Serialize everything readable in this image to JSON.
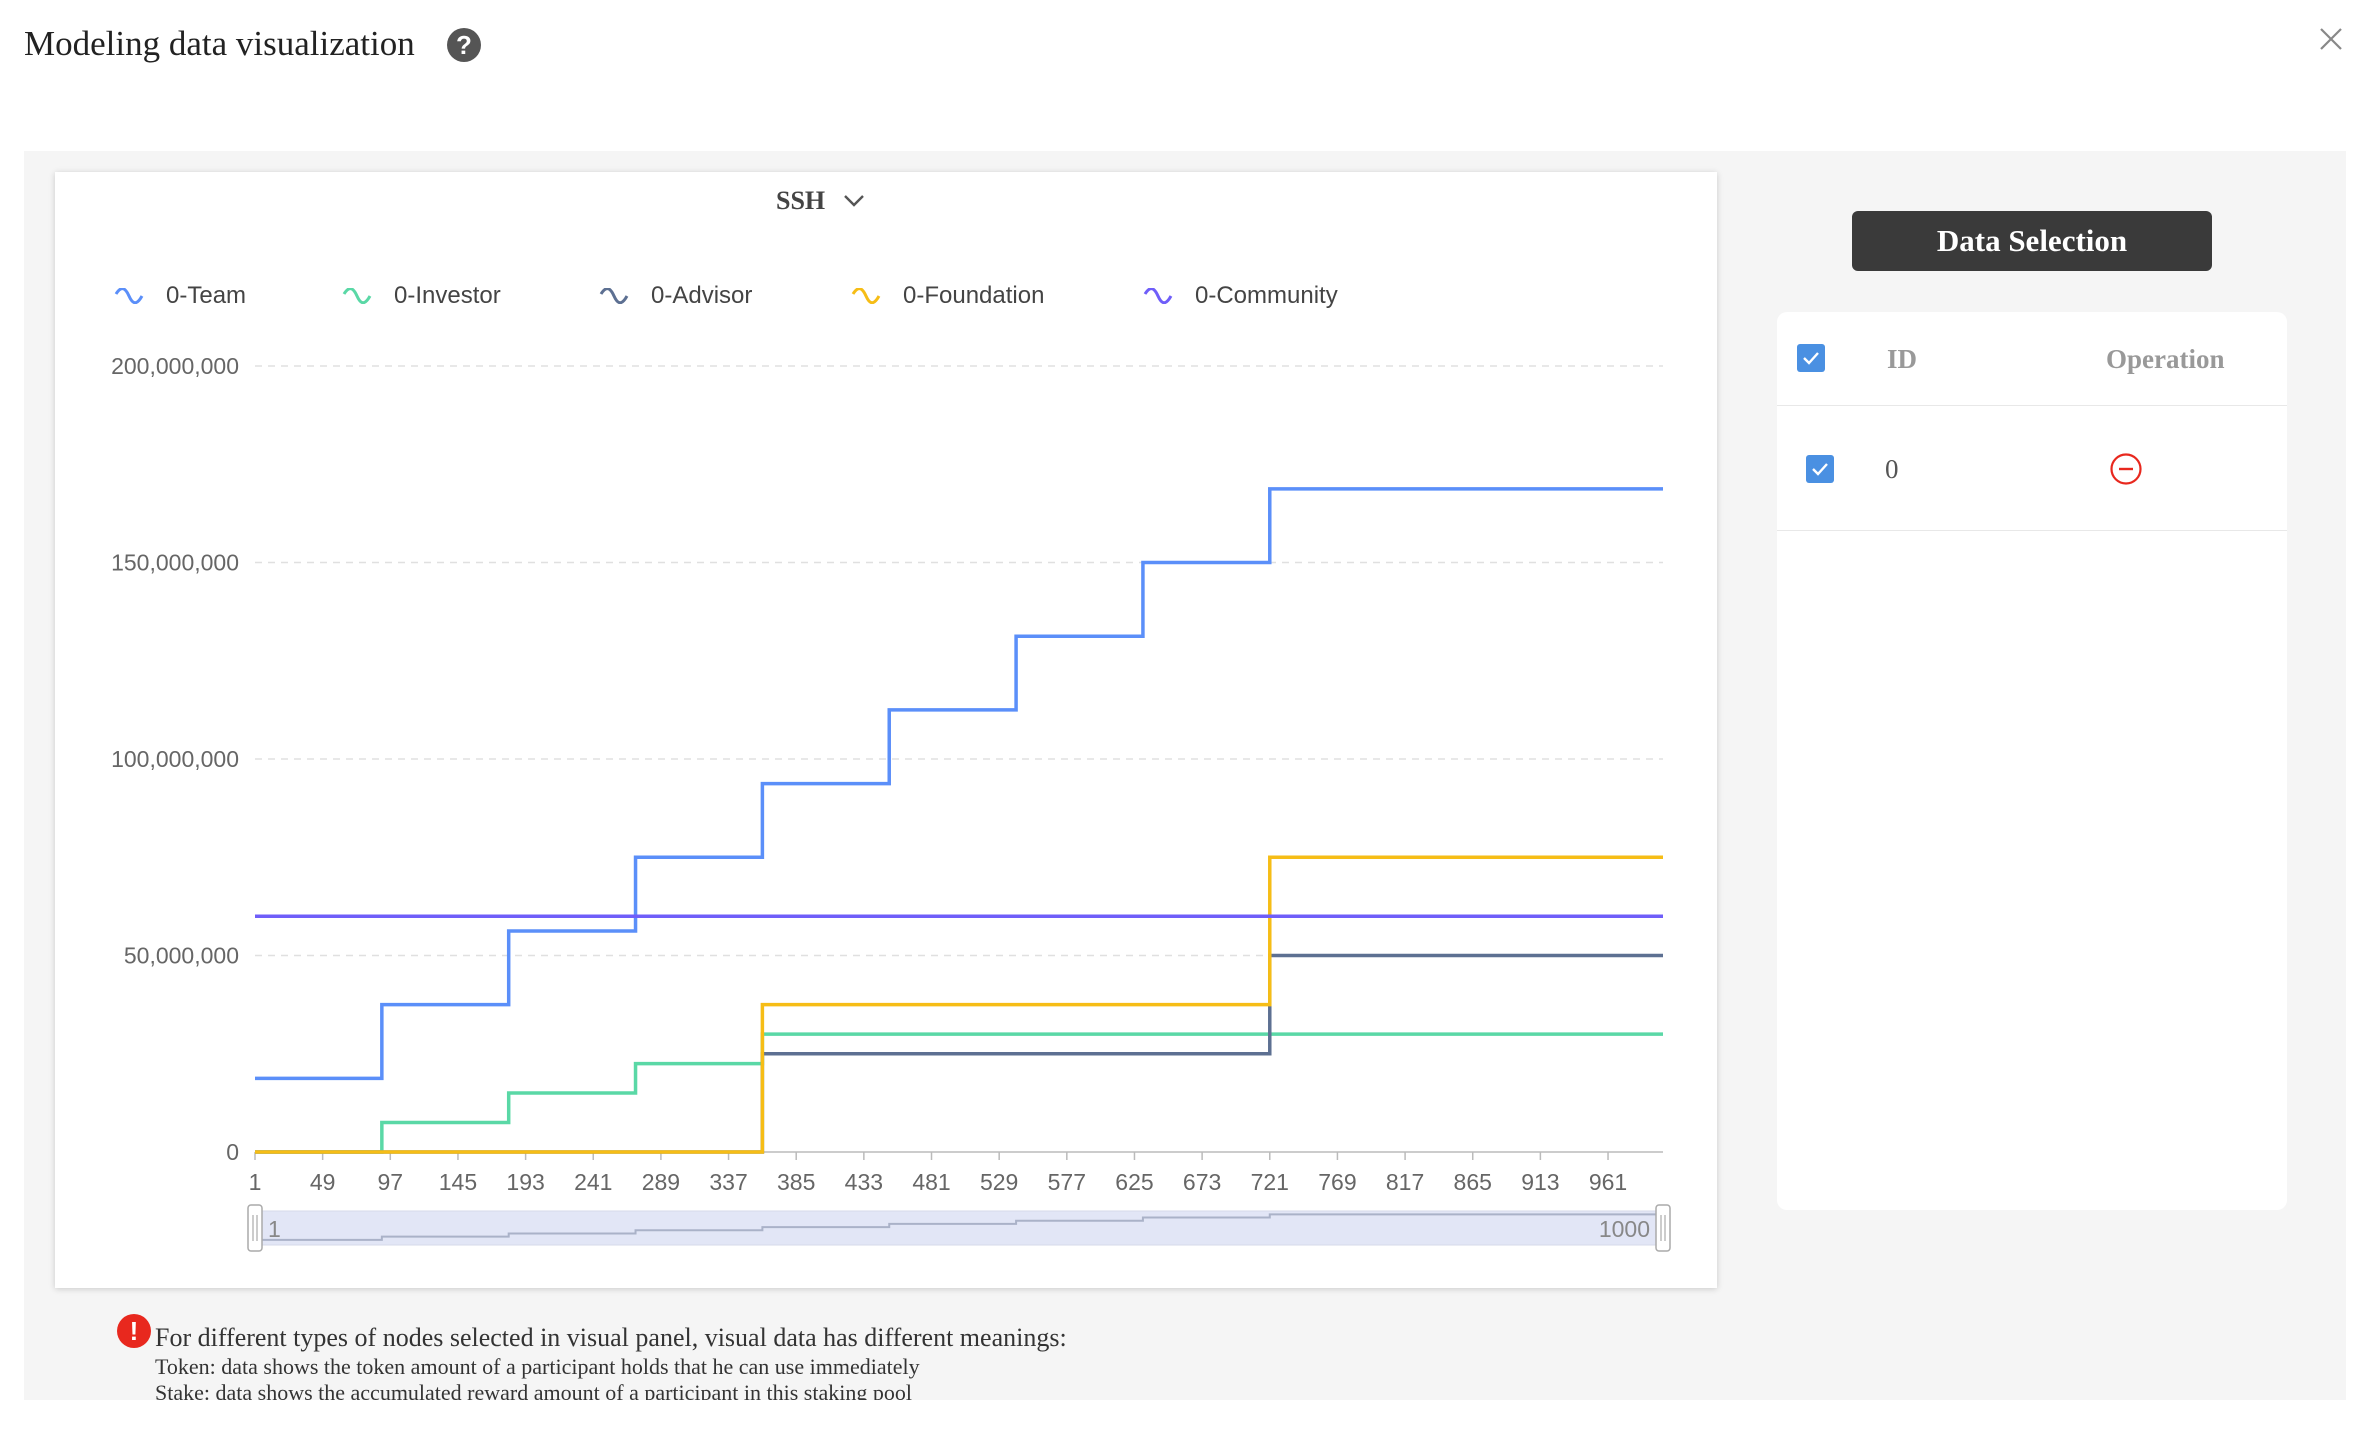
{
  "header": {
    "title": "Modeling data visualization",
    "help_icon": "question-circle-icon",
    "close_icon": "close-icon"
  },
  "dropdown": {
    "label": "SSH",
    "icon": "chevron-down-icon"
  },
  "notes": {
    "icon": "exclamation-circle-icon",
    "main": "For different types of nodes selected in visual panel, visual data has different meanings:",
    "lines": [
      "Token: data shows the token amount of a participant holds that he can use immediately",
      "Stake: data shows the accumulated reward amount of a participant in this staking pool"
    ]
  },
  "data_selection": {
    "button_label": "Data Selection",
    "columns": {
      "id": "ID",
      "operation": "Operation"
    },
    "rows": [
      {
        "id": "0",
        "operation_icon": "minus-circle-icon"
      }
    ]
  },
  "colors": {
    "team": "#5b8ff9",
    "investor": "#5ad8a6",
    "advisor": "#5d7092",
    "foundation": "#f6bd16",
    "community": "#6f5ef9",
    "remove": "#e8281e",
    "checkbox": "#4a90e2"
  },
  "chart_data": {
    "type": "line",
    "step": true,
    "legend": [
      "0-Team",
      "0-Investor",
      "0-Advisor",
      "0-Foundation",
      "0-Community"
    ],
    "legend_placement": "top-left",
    "x_ticks": [
      "1",
      "49",
      "97",
      "145",
      "193",
      "241",
      "289",
      "337",
      "385",
      "433",
      "481",
      "529",
      "577",
      "625",
      "673",
      "721",
      "769",
      "817",
      "865",
      "913",
      "961"
    ],
    "y_ticks": [
      "0",
      "50,000,000",
      "100,000,000",
      "150,000,000",
      "200,000,000"
    ],
    "xlim": [
      1,
      1000
    ],
    "ylim": [
      0,
      200000000
    ],
    "grid": "horizontal-dashed",
    "series": [
      {
        "name": "0-Team",
        "color": "#5b8ff9",
        "steps": [
          [
            1,
            18750000
          ],
          [
            91,
            37500000
          ],
          [
            181,
            56250000
          ],
          [
            271,
            75000000
          ],
          [
            361,
            93750000
          ],
          [
            451,
            112500000
          ],
          [
            541,
            131250000
          ],
          [
            631,
            150000000
          ],
          [
            721,
            168750000
          ]
        ]
      },
      {
        "name": "0-Investor",
        "color": "#5ad8a6",
        "steps": [
          [
            1,
            0
          ],
          [
            91,
            7500000
          ],
          [
            181,
            15000000
          ],
          [
            271,
            22500000
          ],
          [
            361,
            30000000
          ]
        ]
      },
      {
        "name": "0-Advisor",
        "color": "#5d7092",
        "steps": [
          [
            1,
            0
          ],
          [
            361,
            25000000
          ],
          [
            721,
            50000000
          ]
        ]
      },
      {
        "name": "0-Foundation",
        "color": "#f6bd16",
        "steps": [
          [
            1,
            0
          ],
          [
            361,
            37500000
          ],
          [
            721,
            75000000
          ]
        ]
      },
      {
        "name": "0-Community",
        "color": "#6f5ef9",
        "steps": [
          [
            1,
            60000000
          ]
        ]
      }
    ],
    "zoom": {
      "start_label": "1",
      "end_label": "1000",
      "start": 1,
      "end": 1000
    }
  }
}
